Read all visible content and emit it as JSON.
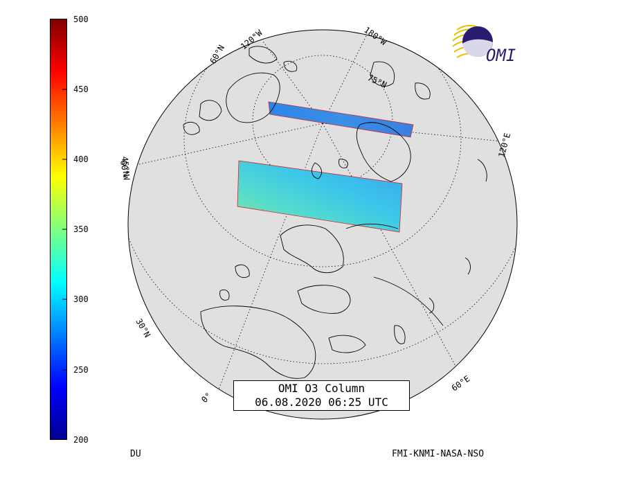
{
  "colorbar": {
    "ticks": [
      "500",
      "450",
      "400",
      "350",
      "300",
      "250",
      "200"
    ],
    "range": [
      200,
      500
    ],
    "colors": [
      "#00008f",
      "#0000ff",
      "#007fff",
      "#00ffff",
      "#7fff7f",
      "#ffff00",
      "#ff7f00",
      "#ff0000",
      "#7f0000"
    ]
  },
  "unit_label": "DU",
  "credit": "FMI-KNMI-NASA-NSO",
  "title": {
    "line1": "OMI O3 Column",
    "line2": "06.08.2020 06:25 UTC"
  },
  "logo": {
    "text": "OMI"
  },
  "map": {
    "projection": "orthographic",
    "globe_fill": "#e0e0e0",
    "labels": {
      "lon_120w": "120°W",
      "lon_180w": "180°W",
      "lon_120e": "120°E",
      "lon_60e": "60°E",
      "lon_0": "0°",
      "lon_60w": "60°W",
      "lat_60n": "60°N",
      "lat_75n": "75°N",
      "lat_45n": "45°N",
      "lat_30n": "30°N"
    },
    "swath_ozone_du": [
      {
        "name": "upper swath",
        "approx_du": 285
      },
      {
        "name": "lower swath",
        "approx_du": 310
      }
    ]
  }
}
